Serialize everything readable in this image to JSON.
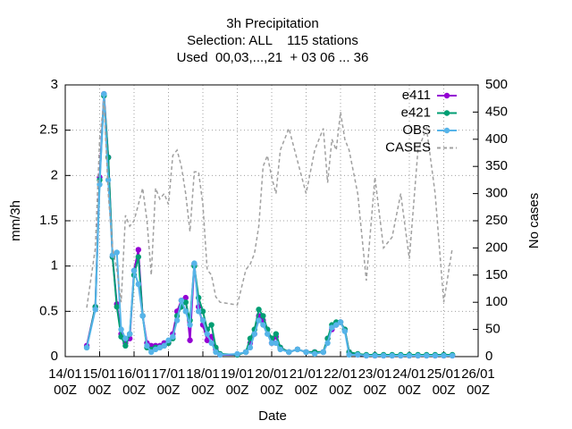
{
  "chart_data": {
    "type": "line",
    "title": "3h Precipitation",
    "subtitle": [
      "Selection: ALL    115 stations",
      "Used  00,03,...,21  + 03 06 ... 36"
    ],
    "x_label": "Date",
    "y_label": "mm/3h",
    "y2_label": "No cases",
    "x": [
      15,
      21,
      24,
      27,
      30,
      33,
      36,
      39,
      42,
      45,
      48,
      51,
      54,
      57,
      60,
      63,
      66,
      69,
      72,
      75,
      78,
      81,
      84,
      87,
      90,
      93,
      96,
      99,
      102,
      105,
      108,
      120,
      126,
      129,
      132,
      135,
      138,
      141,
      144,
      147,
      150,
      156,
      162,
      168,
      174,
      180,
      183,
      186,
      189,
      192,
      195,
      198,
      204,
      210,
      216,
      222,
      228,
      234,
      240,
      246,
      252,
      258,
      264,
      270
    ],
    "xlim": [
      0,
      288
    ],
    "xticks": [
      {
        "value": 0,
        "label": "14/01\n00Z"
      },
      {
        "value": 24,
        "label": "15/01\n00Z"
      },
      {
        "value": 48,
        "label": "16/01\n00Z"
      },
      {
        "value": 72,
        "label": "17/01\n00Z"
      },
      {
        "value": 96,
        "label": "18/01\n00Z"
      },
      {
        "value": 120,
        "label": "19/01\n00Z"
      },
      {
        "value": 144,
        "label": "20/01\n00Z"
      },
      {
        "value": 168,
        "label": "21/01\n00Z"
      },
      {
        "value": 192,
        "label": "22/01\n00Z"
      },
      {
        "value": 216,
        "label": "23/01\n00Z"
      },
      {
        "value": 240,
        "label": "24/01\n00Z"
      },
      {
        "value": 264,
        "label": "25/01\n00Z"
      },
      {
        "value": 288,
        "label": "26/01\n00Z"
      }
    ],
    "ylim": [
      0,
      3
    ],
    "yticks": [
      0,
      0.5,
      1,
      1.5,
      2,
      2.5,
      3
    ],
    "y2lim": [
      0,
      500
    ],
    "y2ticks": [
      0,
      50,
      100,
      150,
      200,
      250,
      300,
      350,
      400,
      450,
      500
    ],
    "grid": true,
    "legend": "top-right",
    "series": [
      {
        "name": "e411",
        "color": "#9400d3",
        "values": [
          0.12,
          0.55,
          1.98,
          2.9,
          2.2,
          1.1,
          0.58,
          0.25,
          0.15,
          0.2,
          0.95,
          1.18,
          0.45,
          0.15,
          0.12,
          0.12,
          0.12,
          0.15,
          0.15,
          0.25,
          0.5,
          0.62,
          0.65,
          0.18,
          1.02,
          0.55,
          0.35,
          0.18,
          0.22,
          0.08,
          0.02,
          0.02,
          0.05,
          0.15,
          0.25,
          0.45,
          0.4,
          0.3,
          0.15,
          0.22,
          0.1,
          0.05,
          0.08,
          0.05,
          0.05,
          0.05,
          0.2,
          0.3,
          0.35,
          0.38,
          0.3,
          0.05,
          0.02,
          0.01,
          0.01,
          0.01,
          0.01,
          0.01,
          0.01,
          0.01,
          0.01,
          0.01,
          0.01,
          0.01
        ]
      },
      {
        "name": "e421",
        "color": "#009e73",
        "values": [
          0.1,
          0.55,
          1.95,
          2.88,
          2.2,
          1.1,
          0.55,
          0.22,
          0.12,
          0.25,
          0.9,
          1.1,
          0.45,
          0.1,
          0.08,
          0.1,
          0.1,
          0.12,
          0.15,
          0.2,
          0.45,
          0.55,
          0.6,
          0.4,
          1.0,
          0.65,
          0.5,
          0.3,
          0.35,
          0.1,
          0.03,
          0.02,
          0.05,
          0.2,
          0.3,
          0.52,
          0.45,
          0.3,
          0.2,
          0.25,
          0.1,
          0.05,
          0.08,
          0.05,
          0.05,
          0.05,
          0.2,
          0.35,
          0.38,
          0.38,
          0.3,
          0.05,
          0.03,
          0.02,
          0.02,
          0.02,
          0.02,
          0.02,
          0.02,
          0.02,
          0.02,
          0.02,
          0.02,
          0.02
        ]
      },
      {
        "name": "OBS",
        "color": "#56b4e9",
        "values": [
          0.1,
          0.52,
          1.9,
          2.9,
          1.95,
          1.12,
          1.15,
          0.3,
          0.2,
          0.25,
          0.95,
          0.8,
          0.45,
          0.12,
          0.05,
          0.08,
          0.1,
          0.12,
          0.18,
          0.22,
          0.4,
          0.62,
          0.5,
          0.35,
          1.03,
          0.5,
          0.4,
          0.25,
          0.15,
          0.05,
          0.02,
          0.03,
          0.05,
          0.1,
          0.25,
          0.4,
          0.35,
          0.25,
          0.15,
          0.15,
          0.08,
          0.05,
          0.08,
          0.05,
          0.03,
          0.05,
          0.15,
          0.32,
          0.35,
          0.38,
          0.28,
          0.02,
          0.02,
          0.01,
          0.01,
          0.01,
          0.01,
          0.01,
          0.01,
          0.01,
          0.01,
          0.01,
          0.01,
          0.01
        ]
      },
      {
        "name": "CASES",
        "color": "#a0a0a0",
        "axis": "y2",
        "dashed": true,
        "values": [
          90,
          200,
          400,
          470,
          300,
          200,
          160,
          100,
          260,
          240,
          250,
          280,
          310,
          250,
          150,
          310,
          290,
          300,
          280,
          370,
          380,
          350,
          300,
          230,
          340,
          340,
          280,
          160,
          150,
          110,
          100,
          95,
          160,
          170,
          190,
          240,
          350,
          370,
          330,
          300,
          380,
          420,
          360,
          300,
          380,
          420,
          320,
          400,
          380,
          450,
          400,
          380,
          300,
          140,
          330,
          200,
          220,
          300,
          180,
          380,
          420,
          300,
          100,
          200
        ]
      }
    ]
  }
}
